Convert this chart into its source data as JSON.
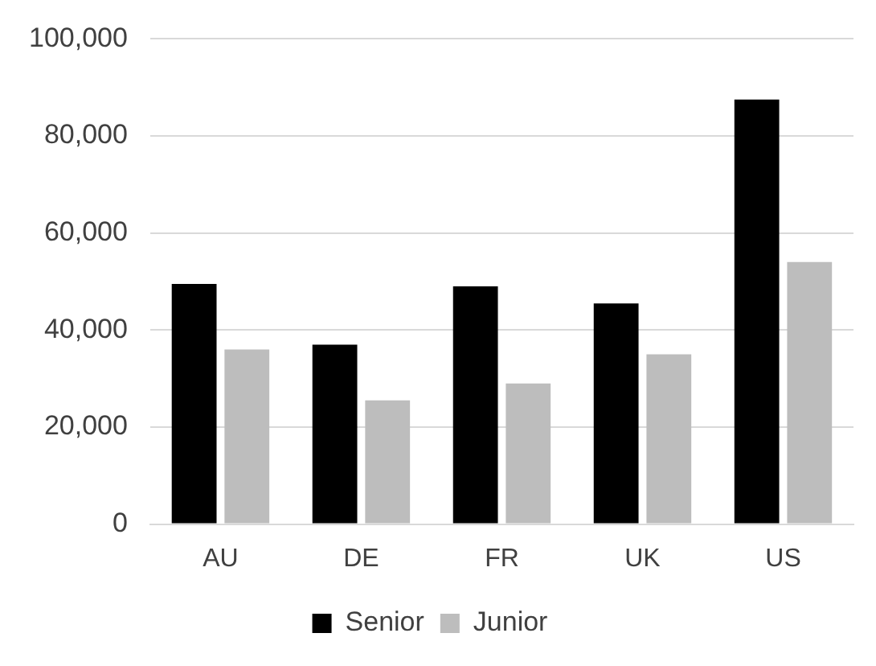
{
  "chart_data": {
    "type": "bar",
    "categories": [
      "AU",
      "DE",
      "FR",
      "UK",
      "US"
    ],
    "series": [
      {
        "name": "Senior",
        "color": "#000000",
        "values": [
          49500,
          37000,
          49000,
          45500,
          87500
        ]
      },
      {
        "name": "Junior",
        "color": "#bdbdbd",
        "values": [
          36000,
          25500,
          29000,
          35000,
          54000
        ]
      }
    ],
    "ylim": [
      0,
      100000
    ],
    "yticks": [
      {
        "value": 0,
        "label": "0"
      },
      {
        "value": 20000,
        "label": "20,000"
      },
      {
        "value": 40000,
        "label": "40,000"
      },
      {
        "value": 60000,
        "label": "60,000"
      },
      {
        "value": 80000,
        "label": "80,000"
      },
      {
        "value": 100000,
        "label": "100,000"
      }
    ],
    "grid": "y",
    "legend": "bottom"
  }
}
